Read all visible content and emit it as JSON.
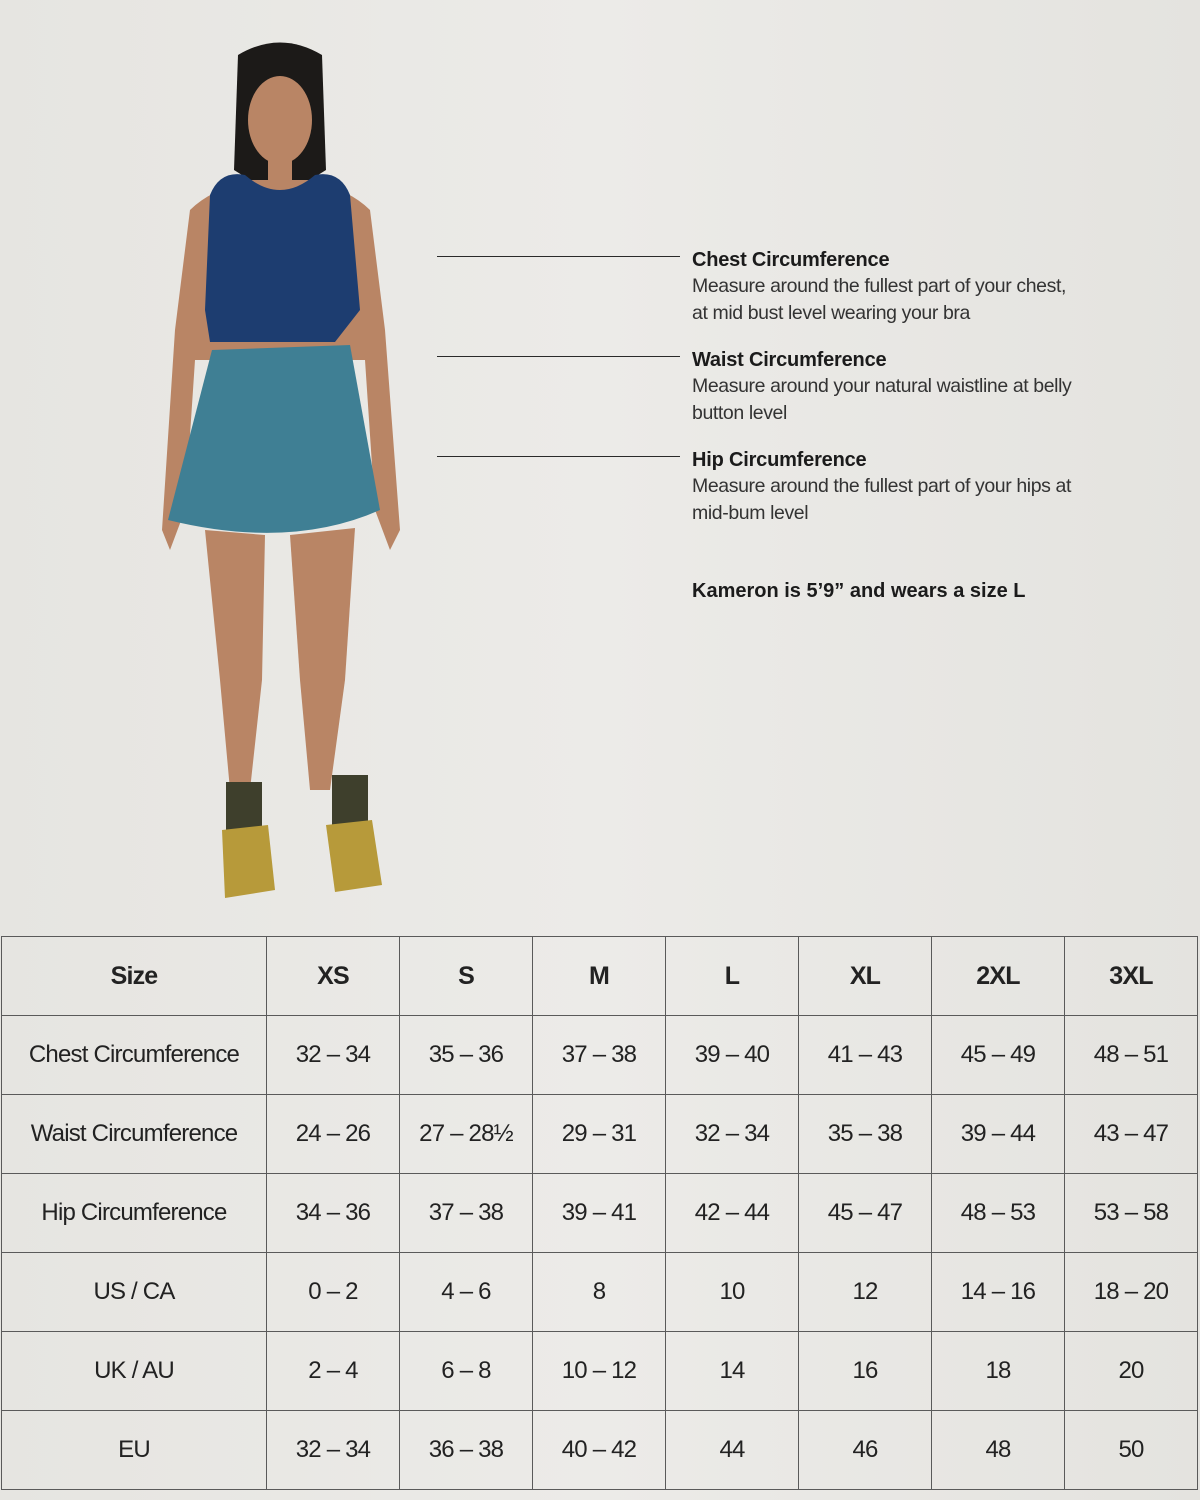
{
  "guides": [
    {
      "title": "Chest Circumference",
      "text": "Measure around the fullest part of your chest, at mid bust level wearing your bra"
    },
    {
      "title": "Waist Circumference",
      "text": "Measure around your natural waistline at belly button level"
    },
    {
      "title": "Hip Circumference",
      "text": "Measure around the fullest part of your hips at mid-bum level"
    }
  ],
  "model_note": "Kameron  is 5’9” and wears a size L",
  "colors": {
    "top": "#1d3d70",
    "skirt": "#3f7f94",
    "shoes": "#b79a3a",
    "socks": "#3e3f2c",
    "skin": "#b98565"
  },
  "table": {
    "headers": [
      "Size",
      "XS",
      "S",
      "M",
      "L",
      "XL",
      "2XL",
      "3XL"
    ],
    "rows": [
      [
        "Chest Circumference",
        "32 – 34",
        "35 – 36",
        "37 – 38",
        "39 – 40",
        "41 – 43",
        "45 – 49",
        "48 – 51"
      ],
      [
        "Waist Circumference",
        "24 – 26",
        "27 – 28½",
        "29 – 31",
        "32 – 34",
        "35 – 38",
        "39 – 44",
        "43 – 47"
      ],
      [
        "Hip Circumference",
        "34 – 36",
        "37 – 38",
        "39 – 41",
        "42 – 44",
        "45 – 47",
        "48 – 53",
        "53 – 58"
      ],
      [
        "US / CA",
        "0 – 2",
        "4 – 6",
        "8",
        "10",
        "12",
        "14 – 16",
        "18 – 20"
      ],
      [
        "UK / AU",
        "2 – 4",
        "6 – 8",
        "10 – 12",
        "14",
        "16",
        "18",
        "20"
      ],
      [
        "EU",
        "32 – 34",
        "36 – 38",
        "40 – 42",
        "44",
        "46",
        "48",
        "50"
      ]
    ]
  }
}
